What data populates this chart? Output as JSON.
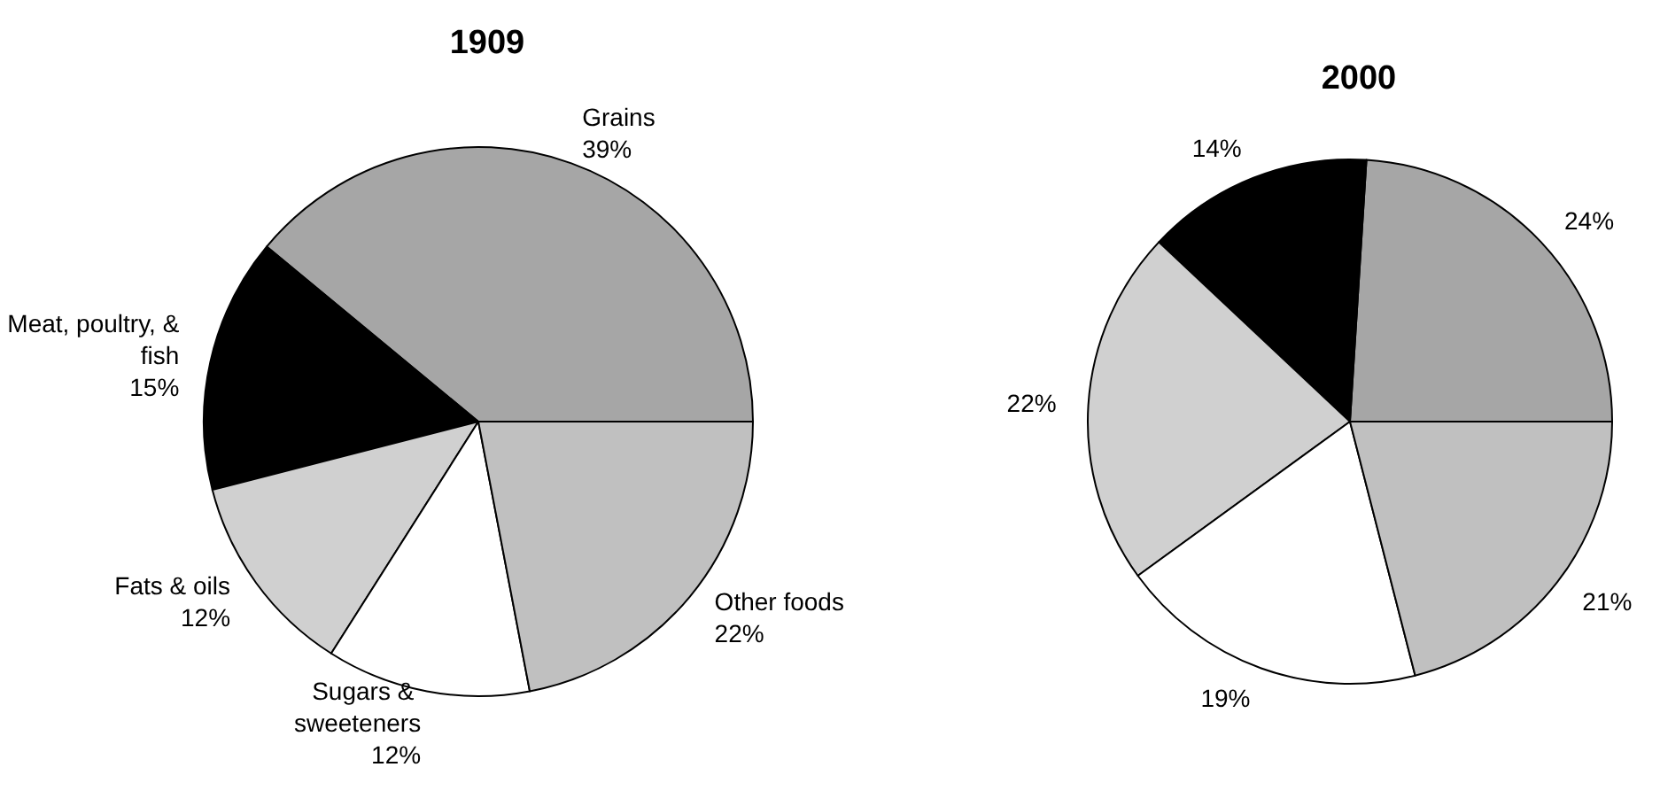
{
  "chart_data": [
    {
      "type": "pie",
      "title": "1909",
      "categories": [
        "Grains",
        "Meat, poultry, & fish",
        "Fats & oils",
        "Sugars & sweeteners",
        "Other foods"
      ],
      "values": [
        39,
        15,
        12,
        12,
        22
      ],
      "value_labels": [
        "39%",
        "15%",
        "12%",
        "12%",
        "22%"
      ],
      "colors": [
        "#a6a6a6",
        "#000000",
        "#d0d0d0",
        "#ffffff",
        "#c0c0c0"
      ]
    },
    {
      "type": "pie",
      "title": "2000",
      "categories": [
        null,
        null,
        null,
        null,
        null
      ],
      "values": [
        24,
        14,
        22,
        19,
        21
      ],
      "value_labels": [
        "24%",
        "14%",
        "22%",
        "19%",
        "21%"
      ],
      "colors": [
        "#a6a6a6",
        "#000000",
        "#d0d0d0",
        "#ffffff",
        "#c0c0c0"
      ]
    }
  ]
}
